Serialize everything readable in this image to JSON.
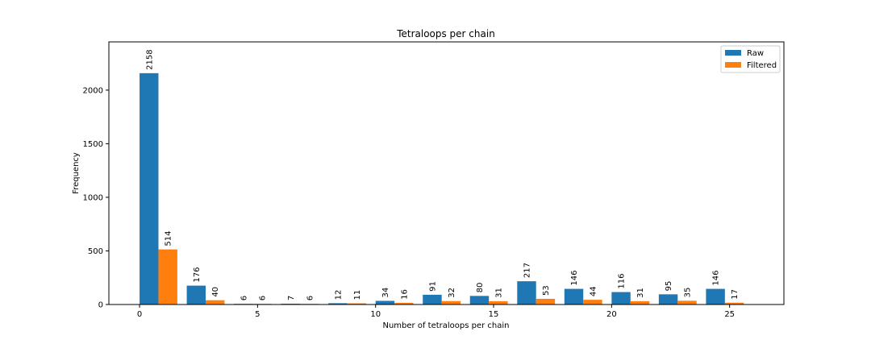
{
  "chart_data": {
    "type": "bar",
    "title": "Tetraloops per chain",
    "xlabel": "Number of tetraloops per chain",
    "ylabel": "Frequency",
    "xlim": [
      -1.3,
      27.3
    ],
    "ylim": [
      0,
      2450
    ],
    "xticks": [
      0,
      5,
      10,
      15,
      20,
      25
    ],
    "yticks": [
      0,
      500,
      1000,
      1500,
      2000
    ],
    "grid": false,
    "legend_position": "top-right",
    "bin_starts": [
      0,
      2,
      4,
      6,
      8,
      10,
      12,
      14,
      16,
      18,
      20,
      22,
      24
    ],
    "bar_width": 0.8,
    "series": [
      {
        "name": "Raw",
        "color": "#1f77b4",
        "offset": 0,
        "values": [
          2158,
          176,
          6,
          7,
          12,
          34,
          91,
          80,
          217,
          146,
          116,
          95,
          146
        ]
      },
      {
        "name": "Filtered",
        "color": "#ff7f0e",
        "offset": 0.8,
        "values": [
          514,
          40,
          6,
          6,
          11,
          16,
          32,
          31,
          53,
          44,
          31,
          35,
          17
        ]
      }
    ]
  }
}
